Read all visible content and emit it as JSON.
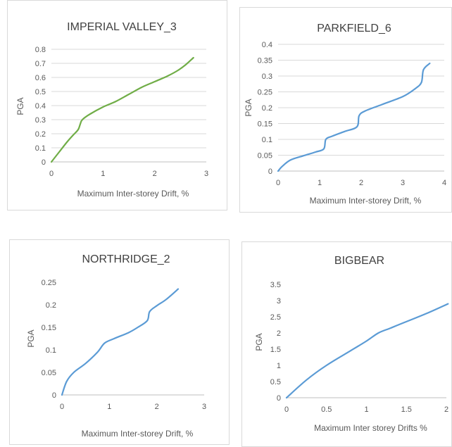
{
  "chart_data": [
    {
      "type": "line",
      "title": "IMPERIAL VALLEY_3",
      "xlabel": "Maximum Inter-storey Drift, %",
      "ylabel": "PGA",
      "xlim": [
        0,
        3
      ],
      "ylim": [
        0,
        0.8
      ],
      "xticks": [
        "0",
        "1",
        "2",
        "3"
      ],
      "yticks": [
        "0",
        "0.1",
        "0.2",
        "0.3",
        "0.4",
        "0.5",
        "0.6",
        "0.7",
        "0.8"
      ],
      "grid": "horizontal",
      "color": "#70ad47",
      "series": [
        {
          "x": [
            0,
            0.15,
            0.3,
            0.42,
            0.52,
            0.56,
            0.6,
            0.75,
            1.0,
            1.25,
            1.5,
            1.75,
            2.0,
            2.25,
            2.45,
            2.6,
            2.75
          ],
          "y": [
            0,
            0.07,
            0.14,
            0.19,
            0.23,
            0.27,
            0.3,
            0.34,
            0.39,
            0.43,
            0.48,
            0.53,
            0.57,
            0.61,
            0.65,
            0.69,
            0.74
          ]
        }
      ]
    },
    {
      "type": "line",
      "title": "PARKFIELD_6",
      "xlabel": "Maximum Inter-storey Drift, %",
      "ylabel": "PGA",
      "xlim": [
        0,
        4
      ],
      "ylim": [
        0,
        0.4
      ],
      "xticks": [
        "0",
        "1",
        "2",
        "3",
        "4"
      ],
      "yticks": [
        "0",
        "0.05",
        "0.1",
        "0.15",
        "0.2",
        "0.25",
        "0.3",
        "0.35",
        "0.4"
      ],
      "grid": "horizontal",
      "color": "#5b9bd5",
      "series": [
        {
          "x": [
            0,
            0.1,
            0.3,
            0.6,
            0.9,
            1.1,
            1.15,
            1.3,
            1.6,
            1.9,
            1.95,
            2.1,
            2.5,
            3.0,
            3.3,
            3.45,
            3.5,
            3.65
          ],
          "y": [
            0,
            0.015,
            0.035,
            0.048,
            0.06,
            0.07,
            0.1,
            0.11,
            0.125,
            0.14,
            0.175,
            0.19,
            0.21,
            0.235,
            0.26,
            0.28,
            0.32,
            0.34
          ]
        }
      ]
    },
    {
      "type": "line",
      "title": "NORTHRIDGE_2",
      "xlabel": "Maximum Inter-storey Drift, %",
      "ylabel": "PGA",
      "xlim": [
        0,
        3
      ],
      "ylim": [
        0,
        0.25
      ],
      "xticks": [
        "0",
        "1",
        "2",
        "3"
      ],
      "yticks": [
        "0",
        "0.05",
        "0.1",
        "0.15",
        "0.2",
        "0.25"
      ],
      "grid": "none",
      "color": "#5b9bd5",
      "series": [
        {
          "x": [
            0,
            0.1,
            0.25,
            0.5,
            0.75,
            0.9,
            1.1,
            1.4,
            1.6,
            1.8,
            1.85,
            2.0,
            2.2,
            2.45
          ],
          "y": [
            0,
            0.03,
            0.05,
            0.07,
            0.095,
            0.115,
            0.125,
            0.138,
            0.15,
            0.165,
            0.185,
            0.198,
            0.212,
            0.235
          ]
        }
      ]
    },
    {
      "type": "line",
      "title": "BIGBEAR",
      "xlabel": "Maximum Inter storey Drifts %",
      "ylabel": "PGA",
      "xlim": [
        0,
        2
      ],
      "ylim": [
        0,
        3.5
      ],
      "xticks": [
        "0",
        "0.5",
        "1",
        "1.5",
        "2"
      ],
      "yticks": [
        "0",
        "0.5",
        "1",
        "1.5",
        "2",
        "2.5",
        "3",
        "3.5"
      ],
      "grid": "none",
      "color": "#5b9bd5",
      "series": [
        {
          "x": [
            0,
            0.25,
            0.5,
            0.8,
            1.0,
            1.15,
            1.3,
            1.5,
            1.75,
            2.02
          ],
          "y": [
            0,
            0.55,
            1.0,
            1.45,
            1.75,
            2.0,
            2.15,
            2.35,
            2.6,
            2.9
          ]
        }
      ]
    }
  ]
}
